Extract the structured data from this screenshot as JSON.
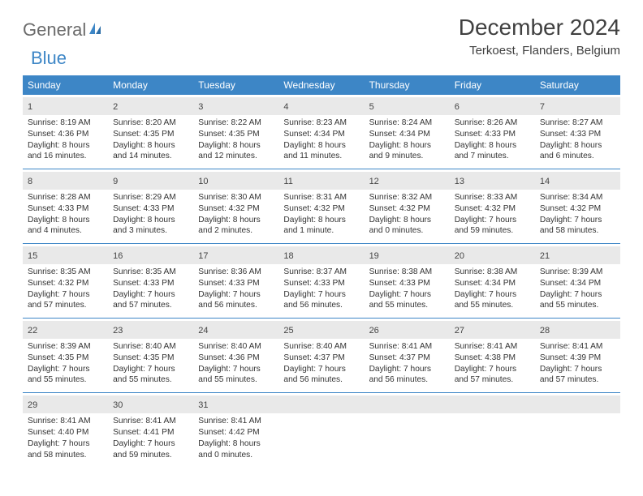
{
  "logo": {
    "text1": "General",
    "text2": "Blue"
  },
  "title": "December 2024",
  "location": "Terkoest, Flanders, Belgium",
  "colors": {
    "header_bg": "#3d86c6",
    "daynum_bg": "#e9e9e9",
    "rule": "#3d86c6",
    "text": "#333333",
    "logo_gray": "#6b6b6b",
    "logo_blue": "#3d86c6"
  },
  "dow": [
    "Sunday",
    "Monday",
    "Tuesday",
    "Wednesday",
    "Thursday",
    "Friday",
    "Saturday"
  ],
  "weeks": [
    [
      {
        "n": "1",
        "sr": "Sunrise: 8:19 AM",
        "ss": "Sunset: 4:36 PM",
        "d1": "Daylight: 8 hours",
        "d2": "and 16 minutes."
      },
      {
        "n": "2",
        "sr": "Sunrise: 8:20 AM",
        "ss": "Sunset: 4:35 PM",
        "d1": "Daylight: 8 hours",
        "d2": "and 14 minutes."
      },
      {
        "n": "3",
        "sr": "Sunrise: 8:22 AM",
        "ss": "Sunset: 4:35 PM",
        "d1": "Daylight: 8 hours",
        "d2": "and 12 minutes."
      },
      {
        "n": "4",
        "sr": "Sunrise: 8:23 AM",
        "ss": "Sunset: 4:34 PM",
        "d1": "Daylight: 8 hours",
        "d2": "and 11 minutes."
      },
      {
        "n": "5",
        "sr": "Sunrise: 8:24 AM",
        "ss": "Sunset: 4:34 PM",
        "d1": "Daylight: 8 hours",
        "d2": "and 9 minutes."
      },
      {
        "n": "6",
        "sr": "Sunrise: 8:26 AM",
        "ss": "Sunset: 4:33 PM",
        "d1": "Daylight: 8 hours",
        "d2": "and 7 minutes."
      },
      {
        "n": "7",
        "sr": "Sunrise: 8:27 AM",
        "ss": "Sunset: 4:33 PM",
        "d1": "Daylight: 8 hours",
        "d2": "and 6 minutes."
      }
    ],
    [
      {
        "n": "8",
        "sr": "Sunrise: 8:28 AM",
        "ss": "Sunset: 4:33 PM",
        "d1": "Daylight: 8 hours",
        "d2": "and 4 minutes."
      },
      {
        "n": "9",
        "sr": "Sunrise: 8:29 AM",
        "ss": "Sunset: 4:33 PM",
        "d1": "Daylight: 8 hours",
        "d2": "and 3 minutes."
      },
      {
        "n": "10",
        "sr": "Sunrise: 8:30 AM",
        "ss": "Sunset: 4:32 PM",
        "d1": "Daylight: 8 hours",
        "d2": "and 2 minutes."
      },
      {
        "n": "11",
        "sr": "Sunrise: 8:31 AM",
        "ss": "Sunset: 4:32 PM",
        "d1": "Daylight: 8 hours",
        "d2": "and 1 minute."
      },
      {
        "n": "12",
        "sr": "Sunrise: 8:32 AM",
        "ss": "Sunset: 4:32 PM",
        "d1": "Daylight: 8 hours",
        "d2": "and 0 minutes."
      },
      {
        "n": "13",
        "sr": "Sunrise: 8:33 AM",
        "ss": "Sunset: 4:32 PM",
        "d1": "Daylight: 7 hours",
        "d2": "and 59 minutes."
      },
      {
        "n": "14",
        "sr": "Sunrise: 8:34 AM",
        "ss": "Sunset: 4:32 PM",
        "d1": "Daylight: 7 hours",
        "d2": "and 58 minutes."
      }
    ],
    [
      {
        "n": "15",
        "sr": "Sunrise: 8:35 AM",
        "ss": "Sunset: 4:32 PM",
        "d1": "Daylight: 7 hours",
        "d2": "and 57 minutes."
      },
      {
        "n": "16",
        "sr": "Sunrise: 8:35 AM",
        "ss": "Sunset: 4:33 PM",
        "d1": "Daylight: 7 hours",
        "d2": "and 57 minutes."
      },
      {
        "n": "17",
        "sr": "Sunrise: 8:36 AM",
        "ss": "Sunset: 4:33 PM",
        "d1": "Daylight: 7 hours",
        "d2": "and 56 minutes."
      },
      {
        "n": "18",
        "sr": "Sunrise: 8:37 AM",
        "ss": "Sunset: 4:33 PM",
        "d1": "Daylight: 7 hours",
        "d2": "and 56 minutes."
      },
      {
        "n": "19",
        "sr": "Sunrise: 8:38 AM",
        "ss": "Sunset: 4:33 PM",
        "d1": "Daylight: 7 hours",
        "d2": "and 55 minutes."
      },
      {
        "n": "20",
        "sr": "Sunrise: 8:38 AM",
        "ss": "Sunset: 4:34 PM",
        "d1": "Daylight: 7 hours",
        "d2": "and 55 minutes."
      },
      {
        "n": "21",
        "sr": "Sunrise: 8:39 AM",
        "ss": "Sunset: 4:34 PM",
        "d1": "Daylight: 7 hours",
        "d2": "and 55 minutes."
      }
    ],
    [
      {
        "n": "22",
        "sr": "Sunrise: 8:39 AM",
        "ss": "Sunset: 4:35 PM",
        "d1": "Daylight: 7 hours",
        "d2": "and 55 minutes."
      },
      {
        "n": "23",
        "sr": "Sunrise: 8:40 AM",
        "ss": "Sunset: 4:35 PM",
        "d1": "Daylight: 7 hours",
        "d2": "and 55 minutes."
      },
      {
        "n": "24",
        "sr": "Sunrise: 8:40 AM",
        "ss": "Sunset: 4:36 PM",
        "d1": "Daylight: 7 hours",
        "d2": "and 55 minutes."
      },
      {
        "n": "25",
        "sr": "Sunrise: 8:40 AM",
        "ss": "Sunset: 4:37 PM",
        "d1": "Daylight: 7 hours",
        "d2": "and 56 minutes."
      },
      {
        "n": "26",
        "sr": "Sunrise: 8:41 AM",
        "ss": "Sunset: 4:37 PM",
        "d1": "Daylight: 7 hours",
        "d2": "and 56 minutes."
      },
      {
        "n": "27",
        "sr": "Sunrise: 8:41 AM",
        "ss": "Sunset: 4:38 PM",
        "d1": "Daylight: 7 hours",
        "d2": "and 57 minutes."
      },
      {
        "n": "28",
        "sr": "Sunrise: 8:41 AM",
        "ss": "Sunset: 4:39 PM",
        "d1": "Daylight: 7 hours",
        "d2": "and 57 minutes."
      }
    ],
    [
      {
        "n": "29",
        "sr": "Sunrise: 8:41 AM",
        "ss": "Sunset: 4:40 PM",
        "d1": "Daylight: 7 hours",
        "d2": "and 58 minutes."
      },
      {
        "n": "30",
        "sr": "Sunrise: 8:41 AM",
        "ss": "Sunset: 4:41 PM",
        "d1": "Daylight: 7 hours",
        "d2": "and 59 minutes."
      },
      {
        "n": "31",
        "sr": "Sunrise: 8:41 AM",
        "ss": "Sunset: 4:42 PM",
        "d1": "Daylight: 8 hours",
        "d2": "and 0 minutes."
      },
      {
        "n": "",
        "sr": "",
        "ss": "",
        "d1": "",
        "d2": ""
      },
      {
        "n": "",
        "sr": "",
        "ss": "",
        "d1": "",
        "d2": ""
      },
      {
        "n": "",
        "sr": "",
        "ss": "",
        "d1": "",
        "d2": ""
      },
      {
        "n": "",
        "sr": "",
        "ss": "",
        "d1": "",
        "d2": ""
      }
    ]
  ]
}
